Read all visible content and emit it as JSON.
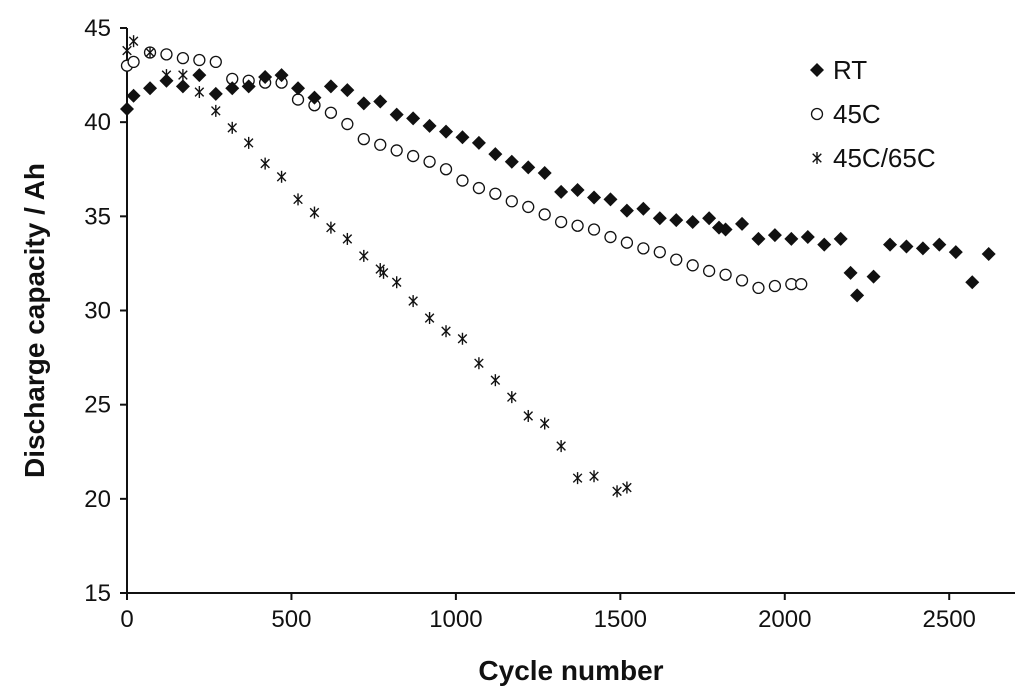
{
  "chart_data": {
    "type": "scatter",
    "xlabel": "Cycle number",
    "ylabel": "Discharge capacity / Ah",
    "xlim": [
      0,
      2700
    ],
    "ylim": [
      15,
      45
    ],
    "xticks": [
      0,
      500,
      1000,
      1500,
      2000,
      2500
    ],
    "yticks": [
      15,
      20,
      25,
      30,
      35,
      40,
      45
    ],
    "grid": false,
    "legend_position": "top-right",
    "series": [
      {
        "name": "RT",
        "marker": "diamond",
        "color": "#111111",
        "points": [
          [
            0,
            40.7
          ],
          [
            20,
            41.4
          ],
          [
            70,
            41.8
          ],
          [
            120,
            42.2
          ],
          [
            170,
            41.9
          ],
          [
            220,
            42.5
          ],
          [
            270,
            41.5
          ],
          [
            320,
            41.8
          ],
          [
            370,
            41.9
          ],
          [
            420,
            42.4
          ],
          [
            470,
            42.5
          ],
          [
            520,
            41.8
          ],
          [
            570,
            41.3
          ],
          [
            620,
            41.9
          ],
          [
            670,
            41.7
          ],
          [
            720,
            41.0
          ],
          [
            770,
            41.1
          ],
          [
            820,
            40.4
          ],
          [
            870,
            40.2
          ],
          [
            920,
            39.8
          ],
          [
            970,
            39.5
          ],
          [
            1020,
            39.2
          ],
          [
            1070,
            38.9
          ],
          [
            1120,
            38.3
          ],
          [
            1170,
            37.9
          ],
          [
            1220,
            37.6
          ],
          [
            1270,
            37.3
          ],
          [
            1320,
            36.3
          ],
          [
            1370,
            36.4
          ],
          [
            1420,
            36.0
          ],
          [
            1470,
            35.9
          ],
          [
            1520,
            35.3
          ],
          [
            1570,
            35.4
          ],
          [
            1620,
            34.9
          ],
          [
            1670,
            34.8
          ],
          [
            1720,
            34.7
          ],
          [
            1770,
            34.9
          ],
          [
            1800,
            34.4
          ],
          [
            1820,
            34.3
          ],
          [
            1870,
            34.6
          ],
          [
            1920,
            33.8
          ],
          [
            1970,
            34.0
          ],
          [
            2020,
            33.8
          ],
          [
            2070,
            33.9
          ],
          [
            2120,
            33.5
          ],
          [
            2170,
            33.8
          ],
          [
            2200,
            32.0
          ],
          [
            2220,
            30.8
          ],
          [
            2270,
            31.8
          ],
          [
            2320,
            33.5
          ],
          [
            2370,
            33.4
          ],
          [
            2420,
            33.3
          ],
          [
            2470,
            33.5
          ],
          [
            2520,
            33.1
          ],
          [
            2570,
            31.5
          ],
          [
            2620,
            33.0
          ]
        ]
      },
      {
        "name": "45C",
        "marker": "circle",
        "color": "#111111",
        "points": [
          [
            0,
            43.0
          ],
          [
            20,
            43.2
          ],
          [
            70,
            43.7
          ],
          [
            120,
            43.6
          ],
          [
            170,
            43.4
          ],
          [
            220,
            43.3
          ],
          [
            270,
            43.2
          ],
          [
            320,
            42.3
          ],
          [
            370,
            42.2
          ],
          [
            420,
            42.1
          ],
          [
            470,
            42.1
          ],
          [
            520,
            41.2
          ],
          [
            570,
            40.9
          ],
          [
            620,
            40.5
          ],
          [
            670,
            39.9
          ],
          [
            720,
            39.1
          ],
          [
            770,
            38.8
          ],
          [
            820,
            38.5
          ],
          [
            870,
            38.2
          ],
          [
            920,
            37.9
          ],
          [
            970,
            37.5
          ],
          [
            1020,
            36.9
          ],
          [
            1070,
            36.5
          ],
          [
            1120,
            36.2
          ],
          [
            1170,
            35.8
          ],
          [
            1220,
            35.5
          ],
          [
            1270,
            35.1
          ],
          [
            1320,
            34.7
          ],
          [
            1370,
            34.5
          ],
          [
            1420,
            34.3
          ],
          [
            1470,
            33.9
          ],
          [
            1520,
            33.6
          ],
          [
            1570,
            33.3
          ],
          [
            1620,
            33.1
          ],
          [
            1670,
            32.7
          ],
          [
            1720,
            32.4
          ],
          [
            1770,
            32.1
          ],
          [
            1820,
            31.9
          ],
          [
            1870,
            31.6
          ],
          [
            1920,
            31.2
          ],
          [
            1970,
            31.3
          ],
          [
            2020,
            31.4
          ],
          [
            2050,
            31.4
          ]
        ]
      },
      {
        "name": "45C/65C",
        "marker": "asterisk",
        "color": "#111111",
        "points": [
          [
            0,
            43.8
          ],
          [
            20,
            44.3
          ],
          [
            70,
            43.7
          ],
          [
            120,
            42.5
          ],
          [
            170,
            42.5
          ],
          [
            220,
            41.6
          ],
          [
            270,
            40.6
          ],
          [
            320,
            39.7
          ],
          [
            370,
            38.9
          ],
          [
            420,
            37.8
          ],
          [
            470,
            37.1
          ],
          [
            520,
            35.9
          ],
          [
            570,
            35.2
          ],
          [
            620,
            34.4
          ],
          [
            670,
            33.8
          ],
          [
            720,
            32.9
          ],
          [
            770,
            32.2
          ],
          [
            780,
            32.0
          ],
          [
            820,
            31.5
          ],
          [
            870,
            30.5
          ],
          [
            920,
            29.6
          ],
          [
            970,
            28.9
          ],
          [
            1020,
            28.5
          ],
          [
            1070,
            27.2
          ],
          [
            1120,
            26.3
          ],
          [
            1170,
            25.4
          ],
          [
            1220,
            24.4
          ],
          [
            1270,
            24.0
          ],
          [
            1320,
            22.8
          ],
          [
            1370,
            21.1
          ],
          [
            1420,
            21.2
          ],
          [
            1490,
            20.4
          ],
          [
            1520,
            20.6
          ]
        ]
      }
    ]
  }
}
